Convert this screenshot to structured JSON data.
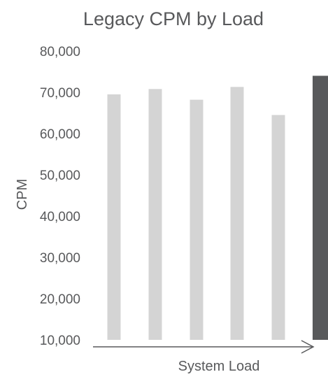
{
  "chart_data": {
    "type": "bar",
    "title": "Legacy CPM by Load",
    "xlabel": "System Load",
    "ylabel": "CPM",
    "categories": [
      "",
      "",
      "",
      "",
      "",
      ""
    ],
    "values": [
      69500,
      70800,
      68200,
      71300,
      64500,
      74000
    ],
    "ylim": [
      10000,
      80000
    ],
    "yticks": [
      10000,
      20000,
      30000,
      40000,
      50000,
      60000,
      70000,
      80000
    ],
    "ytick_labels": [
      "10,000",
      "20,000",
      "30,000",
      "40,000",
      "50,000",
      "60,000",
      "70,000",
      "80,000"
    ],
    "grid": false,
    "legend": "none",
    "colors": {
      "bar": "#d4d4d4",
      "highlight": "#58595b",
      "text": "#58595b",
      "axis": "#58595b"
    },
    "highlight_index": 5
  }
}
